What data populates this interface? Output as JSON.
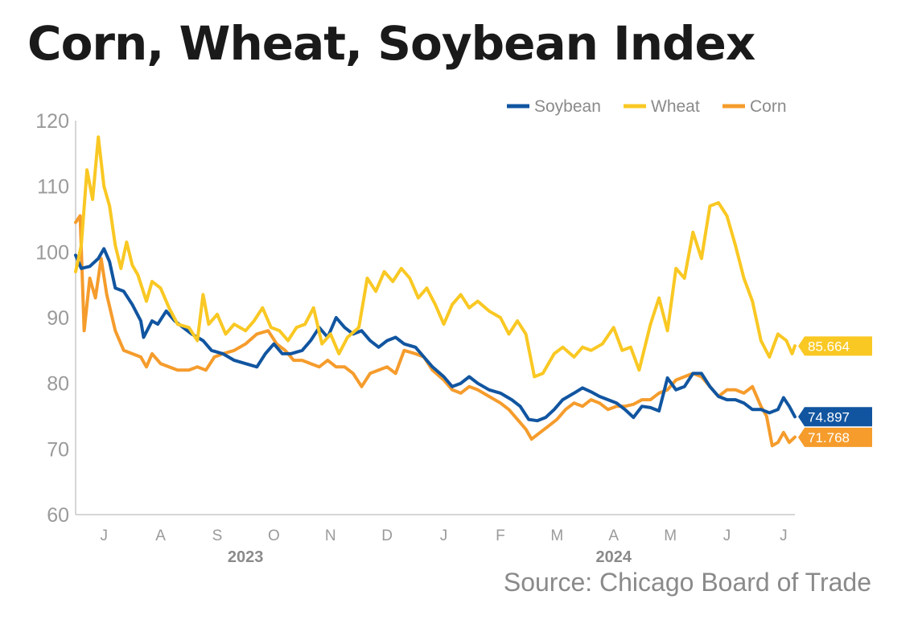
{
  "title": "Corn, Wheat, Soybean Index",
  "source": "Source: Chicago Board of Trade",
  "chart_data": {
    "type": "line",
    "ylim": [
      60,
      120
    ],
    "yticks": [
      60,
      70,
      80,
      90,
      100,
      110,
      120
    ],
    "xlim": [
      0,
      12.7
    ],
    "month_ticks": [
      {
        "label": "J",
        "pos": 0.5
      },
      {
        "label": "A",
        "pos": 1.5
      },
      {
        "label": "S",
        "pos": 2.5
      },
      {
        "label": "O",
        "pos": 3.5
      },
      {
        "label": "N",
        "pos": 4.5
      },
      {
        "label": "D",
        "pos": 5.5
      },
      {
        "label": "J",
        "pos": 6.5
      },
      {
        "label": "F",
        "pos": 7.5
      },
      {
        "label": "M",
        "pos": 8.5
      },
      {
        "label": "A",
        "pos": 9.5
      },
      {
        "label": "M",
        "pos": 10.5
      },
      {
        "label": "J",
        "pos": 11.5
      },
      {
        "label": "J",
        "pos": 12.5
      }
    ],
    "year_labels": [
      {
        "label": "2023",
        "pos": 3.0
      },
      {
        "label": "2024",
        "pos": 9.5
      }
    ],
    "grid": false,
    "legend": "top-right",
    "series": [
      {
        "name": "Soybean",
        "color": "#1155a0",
        "last_value": "74.897",
        "points": [
          [
            0,
            99.5
          ],
          [
            0.1,
            97.5
          ],
          [
            0.25,
            97.8
          ],
          [
            0.4,
            99
          ],
          [
            0.5,
            100.5
          ],
          [
            0.6,
            98.5
          ],
          [
            0.7,
            94.5
          ],
          [
            0.85,
            94
          ],
          [
            1.0,
            92
          ],
          [
            1.15,
            89.5
          ],
          [
            1.2,
            87
          ],
          [
            1.35,
            89.5
          ],
          [
            1.45,
            89
          ],
          [
            1.6,
            91
          ],
          [
            1.75,
            89.5
          ],
          [
            1.9,
            88.5
          ],
          [
            2.05,
            87.5
          ],
          [
            2.25,
            86.5
          ],
          [
            2.4,
            85
          ],
          [
            2.6,
            84.5
          ],
          [
            2.8,
            83.5
          ],
          [
            3.0,
            83
          ],
          [
            3.2,
            82.5
          ],
          [
            3.35,
            84.5
          ],
          [
            3.5,
            86
          ],
          [
            3.65,
            84.5
          ],
          [
            3.8,
            84.5
          ],
          [
            4.0,
            85
          ],
          [
            4.15,
            86.5
          ],
          [
            4.3,
            88.5
          ],
          [
            4.45,
            87
          ],
          [
            4.6,
            90
          ],
          [
            4.75,
            88.5
          ],
          [
            4.9,
            87.5
          ],
          [
            5.05,
            88
          ],
          [
            5.2,
            86.5
          ],
          [
            5.35,
            85.5
          ],
          [
            5.5,
            86.5
          ],
          [
            5.65,
            87
          ],
          [
            5.8,
            86
          ],
          [
            6.0,
            85.5
          ],
          [
            6.15,
            84
          ],
          [
            6.3,
            82.5
          ],
          [
            6.5,
            81
          ],
          [
            6.65,
            79.5
          ],
          [
            6.8,
            80
          ],
          [
            6.95,
            81
          ],
          [
            7.1,
            80
          ],
          [
            7.3,
            79
          ],
          [
            7.5,
            78.5
          ],
          [
            7.7,
            77.5
          ],
          [
            7.85,
            76.5
          ],
          [
            8.0,
            74.5
          ],
          [
            8.15,
            74.3
          ],
          [
            8.3,
            74.8
          ],
          [
            8.45,
            76
          ],
          [
            8.6,
            77.5
          ],
          [
            8.8,
            78.5
          ],
          [
            8.95,
            79.3
          ],
          [
            9.1,
            78.7
          ],
          [
            9.25,
            78
          ],
          [
            9.4,
            77.5
          ],
          [
            9.55,
            77
          ],
          [
            9.7,
            76
          ],
          [
            9.85,
            74.8
          ],
          [
            10.0,
            76.5
          ],
          [
            10.15,
            76.3
          ],
          [
            10.3,
            75.8
          ],
          [
            10.45,
            80.8
          ],
          [
            10.6,
            79
          ],
          [
            10.75,
            79.5
          ],
          [
            10.9,
            81.5
          ],
          [
            11.05,
            81.5
          ],
          [
            11.2,
            79.5
          ],
          [
            11.35,
            78
          ],
          [
            11.5,
            77.5
          ],
          [
            11.65,
            77.5
          ],
          [
            11.8,
            77
          ],
          [
            11.95,
            76
          ],
          [
            12.1,
            76
          ],
          [
            12.25,
            75.5
          ],
          [
            12.4,
            76
          ],
          [
            12.5,
            77.8
          ],
          [
            12.6,
            76.5
          ],
          [
            12.7,
            74.9
          ]
        ]
      },
      {
        "name": "Wheat",
        "color": "#f9c823",
        "last_value": "85.664",
        "points": [
          [
            0,
            97
          ],
          [
            0.1,
            101
          ],
          [
            0.2,
            112.5
          ],
          [
            0.3,
            108
          ],
          [
            0.4,
            117.5
          ],
          [
            0.5,
            110
          ],
          [
            0.6,
            107
          ],
          [
            0.7,
            101
          ],
          [
            0.8,
            97.5
          ],
          [
            0.9,
            101.5
          ],
          [
            1.0,
            98
          ],
          [
            1.1,
            96.5
          ],
          [
            1.25,
            92.5
          ],
          [
            1.35,
            95.5
          ],
          [
            1.5,
            94.5
          ],
          [
            1.65,
            91.5
          ],
          [
            1.8,
            89
          ],
          [
            2.0,
            88.5
          ],
          [
            2.15,
            86.5
          ],
          [
            2.25,
            93.5
          ],
          [
            2.35,
            89
          ],
          [
            2.5,
            90.5
          ],
          [
            2.65,
            87.5
          ],
          [
            2.8,
            89
          ],
          [
            3.0,
            88
          ],
          [
            3.15,
            89.5
          ],
          [
            3.3,
            91.5
          ],
          [
            3.45,
            88.5
          ],
          [
            3.6,
            88
          ],
          [
            3.75,
            86.5
          ],
          [
            3.9,
            88.5
          ],
          [
            4.05,
            89
          ],
          [
            4.2,
            91.5
          ],
          [
            4.35,
            86
          ],
          [
            4.5,
            87.5
          ],
          [
            4.65,
            84.5
          ],
          [
            4.8,
            87
          ],
          [
            5.0,
            88.5
          ],
          [
            5.15,
            96
          ],
          [
            5.3,
            94
          ],
          [
            5.45,
            97
          ],
          [
            5.6,
            95.5
          ],
          [
            5.75,
            97.5
          ],
          [
            5.9,
            96
          ],
          [
            6.05,
            93
          ],
          [
            6.2,
            94.5
          ],
          [
            6.35,
            92
          ],
          [
            6.5,
            89
          ],
          [
            6.65,
            92
          ],
          [
            6.8,
            93.5
          ],
          [
            6.95,
            91.5
          ],
          [
            7.1,
            92.5
          ],
          [
            7.3,
            91
          ],
          [
            7.5,
            90
          ],
          [
            7.65,
            87.5
          ],
          [
            7.8,
            89.5
          ],
          [
            7.95,
            87.5
          ],
          [
            8.1,
            81
          ],
          [
            8.25,
            81.5
          ],
          [
            8.45,
            84.5
          ],
          [
            8.6,
            85.5
          ],
          [
            8.8,
            84
          ],
          [
            8.95,
            85.5
          ],
          [
            9.1,
            85
          ],
          [
            9.3,
            86
          ],
          [
            9.5,
            88.5
          ],
          [
            9.65,
            85
          ],
          [
            9.8,
            85.5
          ],
          [
            9.95,
            82
          ],
          [
            10.15,
            89
          ],
          [
            10.3,
            93
          ],
          [
            10.45,
            88
          ],
          [
            10.6,
            97.5
          ],
          [
            10.75,
            96
          ],
          [
            10.9,
            103
          ],
          [
            11.05,
            99
          ],
          [
            11.2,
            107
          ],
          [
            11.35,
            107.5
          ],
          [
            11.5,
            105.5
          ],
          [
            11.65,
            101
          ],
          [
            11.8,
            96
          ],
          [
            11.95,
            92.5
          ],
          [
            12.1,
            86.5
          ],
          [
            12.25,
            84
          ],
          [
            12.4,
            87.5
          ],
          [
            12.55,
            86.5
          ],
          [
            12.65,
            84.5
          ],
          [
            12.7,
            85.7
          ]
        ]
      },
      {
        "name": "Corn",
        "color": "#f59c2c",
        "last_value": "71.768",
        "points": [
          [
            0,
            104.5
          ],
          [
            0.08,
            105.5
          ],
          [
            0.15,
            88
          ],
          [
            0.25,
            96
          ],
          [
            0.35,
            93
          ],
          [
            0.45,
            99
          ],
          [
            0.55,
            93.5
          ],
          [
            0.7,
            88
          ],
          [
            0.85,
            85
          ],
          [
            1.0,
            84.5
          ],
          [
            1.15,
            84
          ],
          [
            1.25,
            82.5
          ],
          [
            1.35,
            84.5
          ],
          [
            1.5,
            83
          ],
          [
            1.65,
            82.5
          ],
          [
            1.8,
            82
          ],
          [
            2.0,
            82
          ],
          [
            2.15,
            82.5
          ],
          [
            2.3,
            82
          ],
          [
            2.45,
            84
          ],
          [
            2.6,
            84.5
          ],
          [
            2.8,
            85
          ],
          [
            3.0,
            86
          ],
          [
            3.2,
            87.5
          ],
          [
            3.4,
            88
          ],
          [
            3.55,
            86
          ],
          [
            3.7,
            85
          ],
          [
            3.85,
            83.5
          ],
          [
            4.0,
            83.5
          ],
          [
            4.15,
            83
          ],
          [
            4.3,
            82.5
          ],
          [
            4.45,
            83.5
          ],
          [
            4.6,
            82.5
          ],
          [
            4.75,
            82.5
          ],
          [
            4.9,
            81.5
          ],
          [
            5.05,
            79.5
          ],
          [
            5.2,
            81.5
          ],
          [
            5.35,
            82
          ],
          [
            5.5,
            82.5
          ],
          [
            5.65,
            81.5
          ],
          [
            5.8,
            85
          ],
          [
            6.0,
            84.5
          ],
          [
            6.15,
            84
          ],
          [
            6.3,
            82
          ],
          [
            6.5,
            80.5
          ],
          [
            6.65,
            79
          ],
          [
            6.8,
            78.5
          ],
          [
            6.95,
            79.5
          ],
          [
            7.1,
            79
          ],
          [
            7.3,
            78
          ],
          [
            7.5,
            77
          ],
          [
            7.65,
            76
          ],
          [
            7.8,
            74.5
          ],
          [
            7.95,
            73
          ],
          [
            8.05,
            71.5
          ],
          [
            8.2,
            72.5
          ],
          [
            8.35,
            73.5
          ],
          [
            8.5,
            74.5
          ],
          [
            8.65,
            76
          ],
          [
            8.8,
            77
          ],
          [
            8.95,
            76.5
          ],
          [
            9.1,
            77.5
          ],
          [
            9.25,
            77
          ],
          [
            9.4,
            76
          ],
          [
            9.55,
            76.5
          ],
          [
            9.7,
            76.5
          ],
          [
            9.85,
            76.8
          ],
          [
            10.0,
            77.5
          ],
          [
            10.15,
            77.5
          ],
          [
            10.3,
            78.5
          ],
          [
            10.45,
            79
          ],
          [
            10.6,
            80.5
          ],
          [
            10.75,
            81
          ],
          [
            10.9,
            81.5
          ],
          [
            11.05,
            81
          ],
          [
            11.2,
            79.5
          ],
          [
            11.35,
            78
          ],
          [
            11.5,
            79
          ],
          [
            11.65,
            79
          ],
          [
            11.8,
            78.5
          ],
          [
            11.95,
            79.5
          ],
          [
            12.1,
            76.5
          ],
          [
            12.2,
            75
          ],
          [
            12.3,
            70.5
          ],
          [
            12.4,
            71
          ],
          [
            12.5,
            72.5
          ],
          [
            12.6,
            71
          ],
          [
            12.7,
            71.8
          ]
        ]
      }
    ]
  }
}
